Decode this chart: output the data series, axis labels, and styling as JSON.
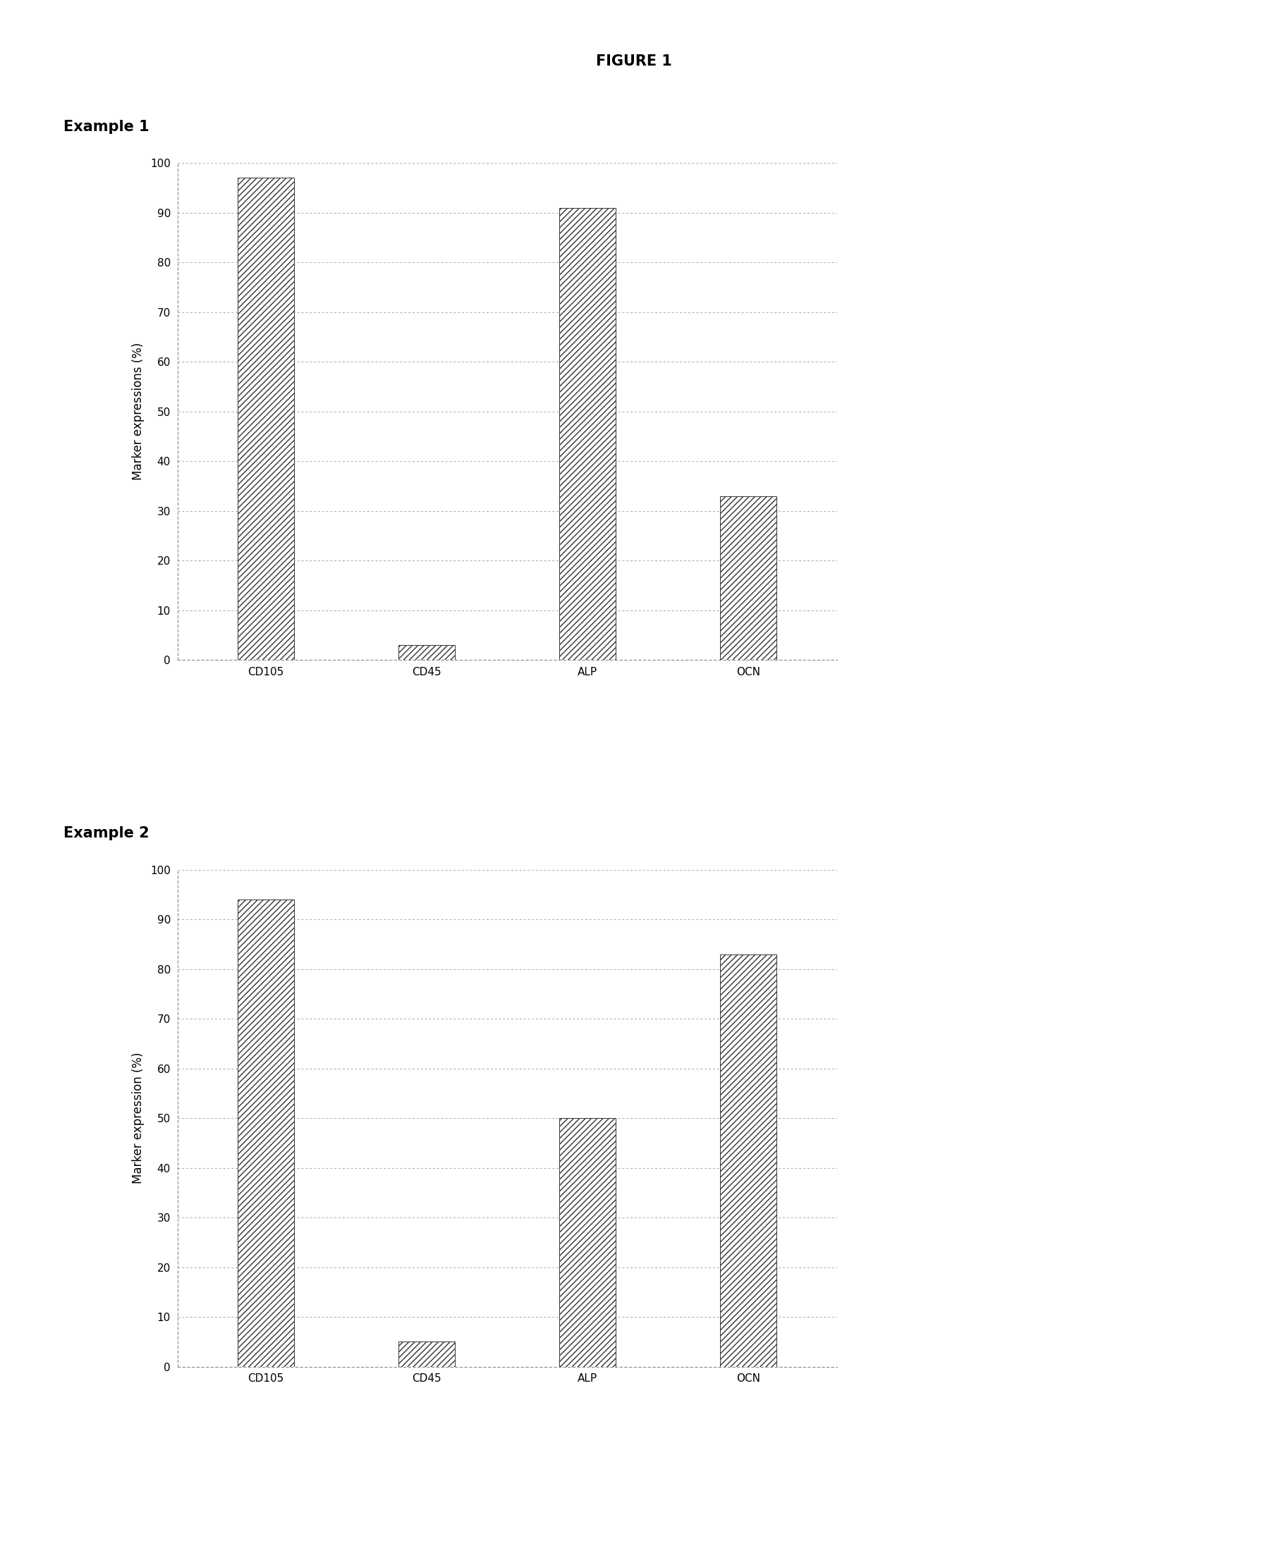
{
  "figure_title": "FIGURE 1",
  "example1": {
    "title": "Example 1",
    "categories": [
      "CD105",
      "CD45",
      "ALP",
      "OCN"
    ],
    "values": [
      97,
      3,
      91,
      33
    ],
    "ylabel": "Marker expressions (%)",
    "ylim": [
      0,
      100
    ],
    "yticks": [
      0,
      10,
      20,
      30,
      40,
      50,
      60,
      70,
      80,
      90,
      100
    ]
  },
  "example2": {
    "title": "Example 2",
    "categories": [
      "CD105",
      "CD45",
      "ALP",
      "OCN"
    ],
    "values": [
      94,
      5,
      50,
      83
    ],
    "ylabel": "Marker expression (%)",
    "ylim": [
      0,
      100
    ],
    "yticks": [
      0,
      10,
      20,
      30,
      40,
      50,
      60,
      70,
      80,
      90,
      100
    ]
  },
  "hatch_pattern": "////",
  "background_color": "#ffffff",
  "fig_title_fontsize": 15,
  "example_title_fontsize": 15,
  "axis_label_fontsize": 12,
  "tick_fontsize": 11,
  "bar_width": 0.35
}
